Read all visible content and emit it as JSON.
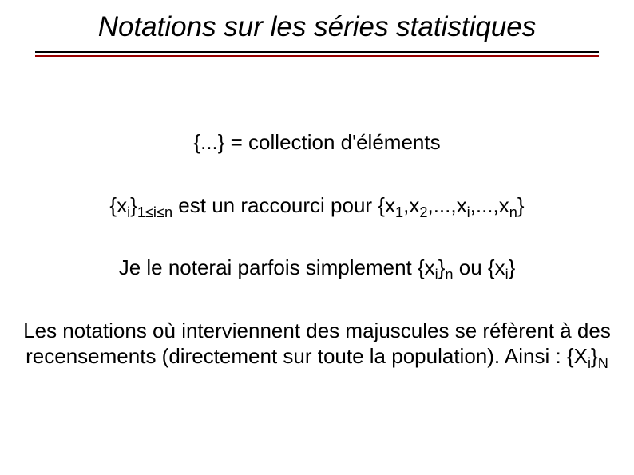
{
  "title": "Notations sur les séries statistiques",
  "colors": {
    "text": "#000000",
    "underline_black": "#000000",
    "underline_red": "#990000",
    "background": "#ffffff"
  },
  "typography": {
    "title_fontsize": 35,
    "title_style": "italic",
    "body_fontsize": 26,
    "font_family": "Arial"
  },
  "lines": [
    "{...} = collection d'éléments",
    "{x_i}_1≤i≤n est un raccourci pour {x_1,x_2,...,x_i,...,x_n}",
    "Je le noterai parfois simplement {x_i}_n ou {x_i}",
    "Les notations où interviennent des majuscules se réfèrent à des recensements (directement sur toute la population). Ainsi : {X_i}_N"
  ],
  "p1": {
    "text": "{...} = collection d'éléments"
  },
  "p2": {
    "t1": "{x",
    "s1": "i",
    "t2": "}",
    "s2": "1≤i≤n",
    "t3": " est un raccourci pour {x",
    "s3": "1",
    "t4": ",x",
    "s4": "2",
    "t5": ",...,x",
    "s5": "i",
    "t6": ",...,x",
    "s6": "n",
    "t7": "}"
  },
  "p3": {
    "t1": "Je le noterai parfois simplement {x",
    "s1": "i",
    "t2": "}",
    "s2": "n",
    "t3": " ou {x",
    "s3": "i",
    "t4": "}"
  },
  "p4": {
    "t1": "Les notations où interviennent des majuscules se réfèrent à des recensements (directement sur toute la population). Ainsi : {X",
    "s1": "i",
    "t2": "}",
    "s2": "N"
  }
}
